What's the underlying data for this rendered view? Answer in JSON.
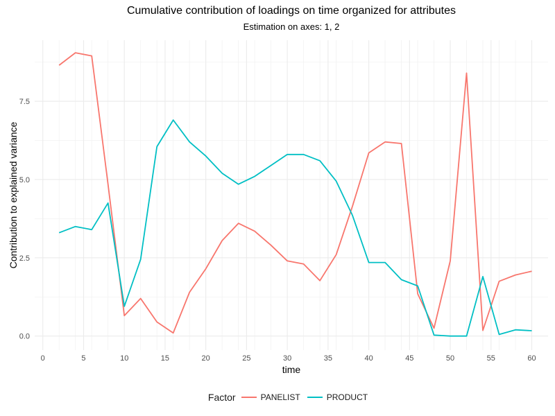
{
  "chart_data": {
    "type": "line",
    "title": "Cumulative contribution of loadings on time organized for attributes",
    "subtitle": "Estimation on axes: 1, 2",
    "xlabel": "time",
    "ylabel": "Contribution to explained variance",
    "xlim": [
      -1,
      62
    ],
    "ylim": [
      -0.45,
      9.45
    ],
    "x_ticks": [
      0,
      5,
      10,
      15,
      20,
      25,
      30,
      35,
      40,
      45,
      50,
      55,
      60
    ],
    "x_minor_ticks": [
      2,
      4,
      6,
      8,
      12,
      14,
      16,
      18,
      22,
      24,
      26,
      28,
      32,
      34,
      36,
      38,
      42,
      44,
      46,
      48,
      52,
      54,
      56,
      58
    ],
    "y_ticks": [
      0.0,
      2.5,
      5.0,
      7.5
    ],
    "y_tick_labels": [
      "0.0",
      "2.5",
      "5.0",
      "7.5"
    ],
    "grid": true,
    "legend_title": "Factor",
    "legend_position": "bottom",
    "x": [
      2,
      4,
      6,
      8,
      10,
      12,
      14,
      16,
      18,
      20,
      22,
      24,
      26,
      28,
      30,
      32,
      34,
      36,
      38,
      40,
      42,
      44,
      46,
      48,
      50,
      52,
      54,
      56,
      58,
      60
    ],
    "series": [
      {
        "name": "PANELIST",
        "color": "#f8766d",
        "values": [
          8.65,
          9.05,
          8.95,
          4.85,
          0.65,
          1.2,
          0.45,
          0.1,
          1.4,
          2.15,
          3.05,
          3.6,
          3.35,
          2.9,
          2.4,
          2.3,
          1.77,
          2.6,
          4.15,
          5.85,
          6.2,
          6.15,
          1.35,
          0.25,
          2.4,
          8.4,
          0.18,
          1.75,
          1.95,
          2.07
        ]
      },
      {
        "name": "PRODUCT",
        "color": "#00bfc4",
        "values": [
          3.3,
          3.5,
          3.4,
          4.25,
          0.95,
          2.45,
          6.05,
          6.9,
          6.2,
          5.75,
          5.2,
          4.85,
          5.1,
          5.45,
          5.8,
          5.8,
          5.6,
          4.95,
          3.85,
          2.35,
          2.35,
          1.8,
          1.6,
          0.03,
          0.0,
          0.0,
          1.9,
          0.05,
          0.2,
          0.17
        ]
      }
    ]
  }
}
